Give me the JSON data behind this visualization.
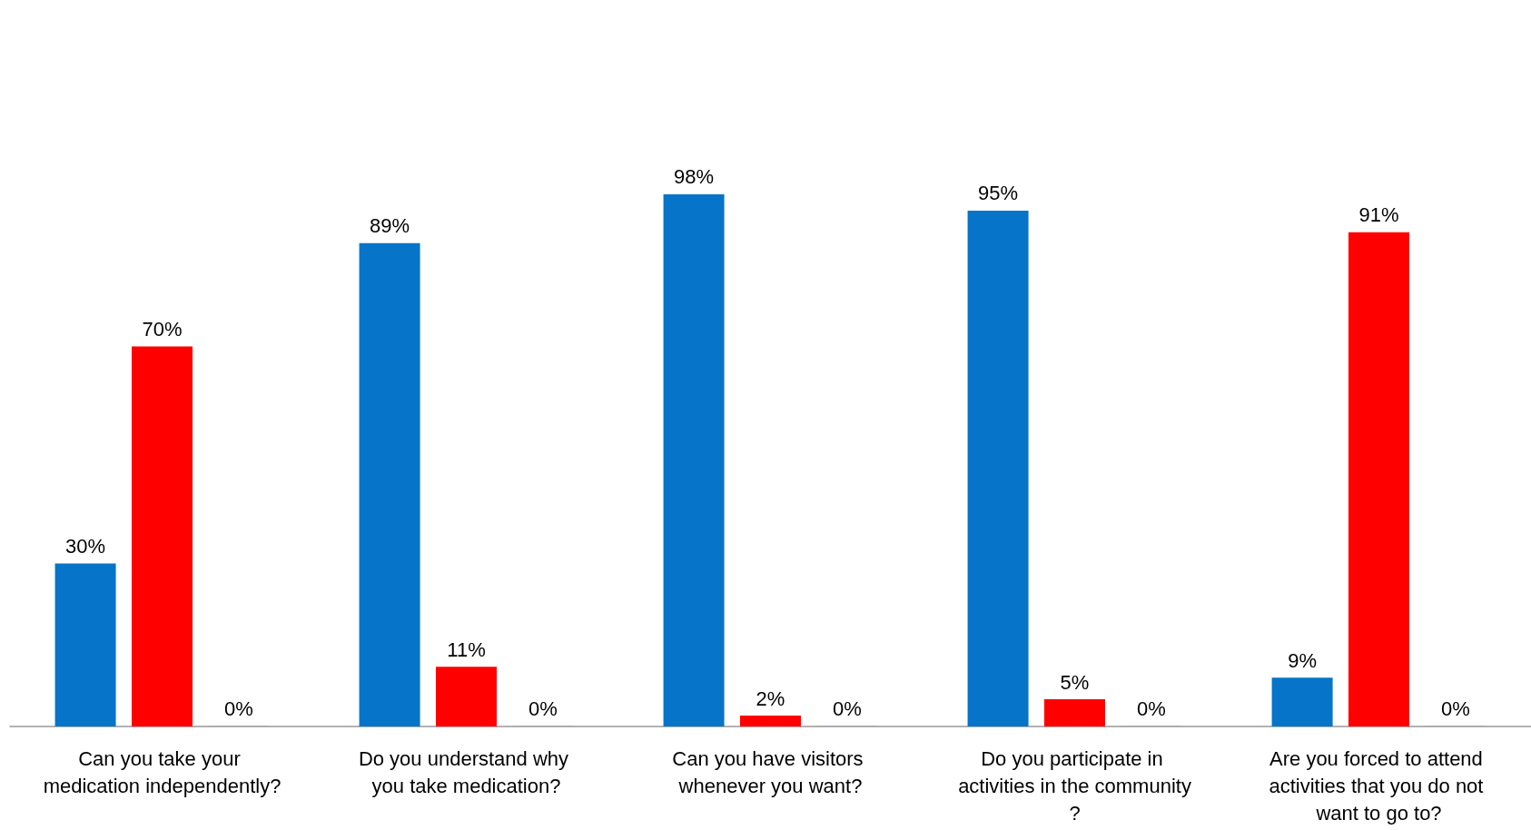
{
  "chart_data": {
    "type": "bar",
    "categories": [
      "Can you take your medication independently?",
      "Do you understand why you take medication?",
      "Can you have visitors whenever you want?",
      "Do you participate in activities in the community?",
      "Are you forced to attend activities that you do not want to go to?"
    ],
    "series": [
      {
        "color": "#0674c8",
        "values": [
          30,
          89,
          98,
          95,
          9
        ],
        "value_labels": [
          "30%",
          "89%",
          "98%",
          "95%",
          "9%"
        ]
      },
      {
        "color": "#ff0000",
        "values": [
          70,
          11,
          2,
          5,
          91
        ],
        "value_labels": [
          "70%",
          "11%",
          "2%",
          "5%",
          "91%"
        ]
      },
      {
        "color": "#a5a5a5",
        "values": [
          0,
          0,
          0,
          0,
          0
        ],
        "value_labels": [
          "0%",
          "0%",
          "0%",
          "0%",
          "0%"
        ]
      }
    ],
    "grid": false
  }
}
